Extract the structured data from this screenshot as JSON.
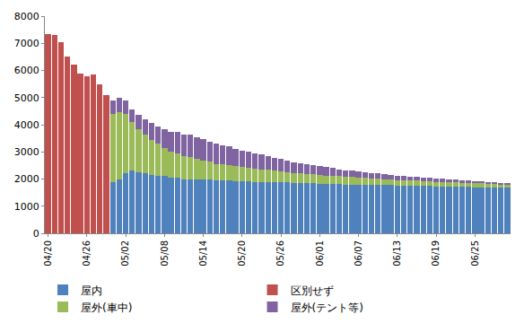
{
  "chart_data": {
    "type": "bar",
    "stacked": true,
    "grid": false,
    "legend": "bottom",
    "categories": [
      "04/20",
      null,
      null,
      null,
      null,
      null,
      "04/26",
      null,
      null,
      null,
      null,
      null,
      "05/02",
      null,
      null,
      null,
      null,
      null,
      "05/08",
      null,
      null,
      null,
      null,
      null,
      "05/14",
      null,
      null,
      null,
      null,
      null,
      "05/20",
      null,
      null,
      null,
      null,
      null,
      "05/26",
      null,
      null,
      null,
      null,
      null,
      "06/01",
      null,
      null,
      null,
      null,
      null,
      "06/07",
      null,
      null,
      null,
      null,
      null,
      "06/13",
      null,
      null,
      null,
      null,
      null,
      "06/19",
      null,
      null,
      null,
      null,
      null,
      "06/25",
      null,
      null,
      null,
      null,
      null
    ],
    "ylim": [
      0,
      8000
    ],
    "yticks": [
      0,
      1000,
      2000,
      3000,
      4000,
      5000,
      6000,
      7000,
      8000
    ],
    "series": [
      {
        "name": "屋内",
        "color": "#4f81bd",
        "values": [
          null,
          null,
          null,
          null,
          null,
          null,
          null,
          null,
          null,
          null,
          1900,
          2000,
          2200,
          2300,
          2250,
          2200,
          2150,
          2100,
          2100,
          2050,
          2050,
          2000,
          2000,
          2000,
          1980,
          1980,
          1950,
          1950,
          1950,
          1930,
          1930,
          1920,
          1900,
          1900,
          1900,
          1880,
          1880,
          1870,
          1860,
          1850,
          1850,
          1840,
          1830,
          1820,
          1820,
          1810,
          1800,
          1800,
          1790,
          1790,
          1780,
          1780,
          1770,
          1770,
          1760,
          1760,
          1750,
          1750,
          1740,
          1740,
          1730,
          1730,
          1720,
          1720,
          1710,
          1710,
          1700,
          1700,
          1690,
          1690,
          1680,
          1680
        ]
      },
      {
        "name": "区別せず",
        "color": "#c0504d",
        "values": [
          7350,
          7300,
          7050,
          6500,
          6200,
          5900,
          5800,
          5850,
          5500,
          5100,
          null,
          null,
          null,
          null,
          null,
          null,
          null,
          null,
          null,
          null,
          null,
          null,
          null,
          null,
          null,
          null,
          null,
          null,
          null,
          null,
          null,
          null,
          null,
          null,
          null,
          null,
          null,
          null,
          null,
          null,
          null,
          null,
          null,
          null,
          null,
          null,
          null,
          null,
          null,
          null,
          null,
          null,
          null,
          null,
          null,
          null,
          null,
          null,
          null,
          null,
          null,
          null,
          null,
          null,
          null,
          null,
          null,
          null,
          null,
          null,
          null,
          null
        ]
      },
      {
        "name": "屋外(車中)",
        "color": "#9bbb59",
        "values": [
          null,
          null,
          null,
          null,
          null,
          null,
          null,
          null,
          null,
          null,
          2500,
          2450,
          2200,
          1800,
          1600,
          1450,
          1300,
          1200,
          1050,
          950,
          900,
          850,
          800,
          750,
          700,
          650,
          600,
          580,
          560,
          540,
          520,
          500,
          480,
          460,
          440,
          420,
          400,
          380,
          360,
          350,
          340,
          330,
          320,
          310,
          300,
          290,
          280,
          270,
          260,
          250,
          240,
          230,
          220,
          210,
          200,
          200,
          190,
          190,
          180,
          180,
          170,
          170,
          160,
          160,
          150,
          150,
          140,
          140,
          130,
          130,
          120,
          120
        ]
      },
      {
        "name": "屋外(テント等)",
        "color": "#8064a2",
        "values": [
          null,
          null,
          null,
          null,
          null,
          null,
          null,
          null,
          null,
          null,
          500,
          550,
          500,
          450,
          500,
          550,
          600,
          650,
          700,
          750,
          800,
          800,
          850,
          800,
          800,
          750,
          750,
          700,
          700,
          650,
          600,
          600,
          550,
          550,
          500,
          480,
          450,
          430,
          400,
          380,
          360,
          340,
          320,
          300,
          280,
          260,
          250,
          240,
          230,
          220,
          210,
          200,
          190,
          180,
          170,
          160,
          150,
          140,
          130,
          120,
          110,
          110,
          100,
          100,
          90,
          90,
          80,
          80,
          70,
          70,
          60,
          60
        ]
      }
    ]
  }
}
